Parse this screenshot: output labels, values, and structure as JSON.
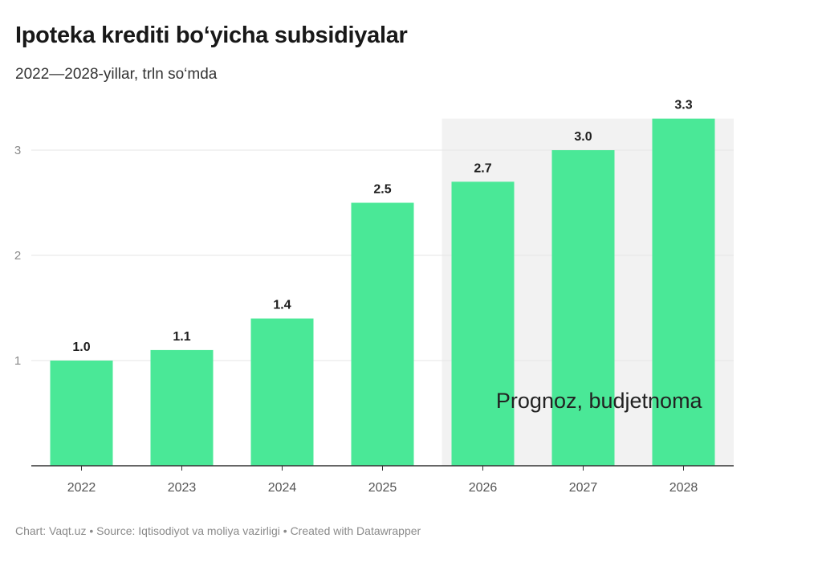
{
  "header": {
    "title": "Ipoteka krediti bo‘yicha subsidiyalar",
    "subtitle": "2022—2028-yillar, trln so‘mda"
  },
  "footer": {
    "text": "Chart: Vaqt.uz • Source: Iqtisodiyot va moliya vazirligi • Created with Datawrapper"
  },
  "chart_data": {
    "type": "bar",
    "title": "Ipoteka krediti bo‘yicha subsidiyalar",
    "subtitle": "2022—2028-yillar, trln so‘mda",
    "categories": [
      "2022",
      "2023",
      "2024",
      "2025",
      "2026",
      "2027",
      "2028"
    ],
    "values": [
      1.0,
      1.1,
      1.4,
      2.5,
      2.7,
      3.0,
      3.3
    ],
    "value_labels": [
      "1.0",
      "1.1",
      "1.4",
      "2.5",
      "2.7",
      "3.0",
      "3.3"
    ],
    "yticks": [
      1,
      2,
      3
    ],
    "ylim": [
      0,
      3.3
    ],
    "grid": true,
    "bar_color": "#4ae897",
    "highlight": {
      "label": "Prognoz, budjetnoma",
      "from_category": "2026",
      "to_category": "2028",
      "color": "#f2f2f2"
    }
  }
}
